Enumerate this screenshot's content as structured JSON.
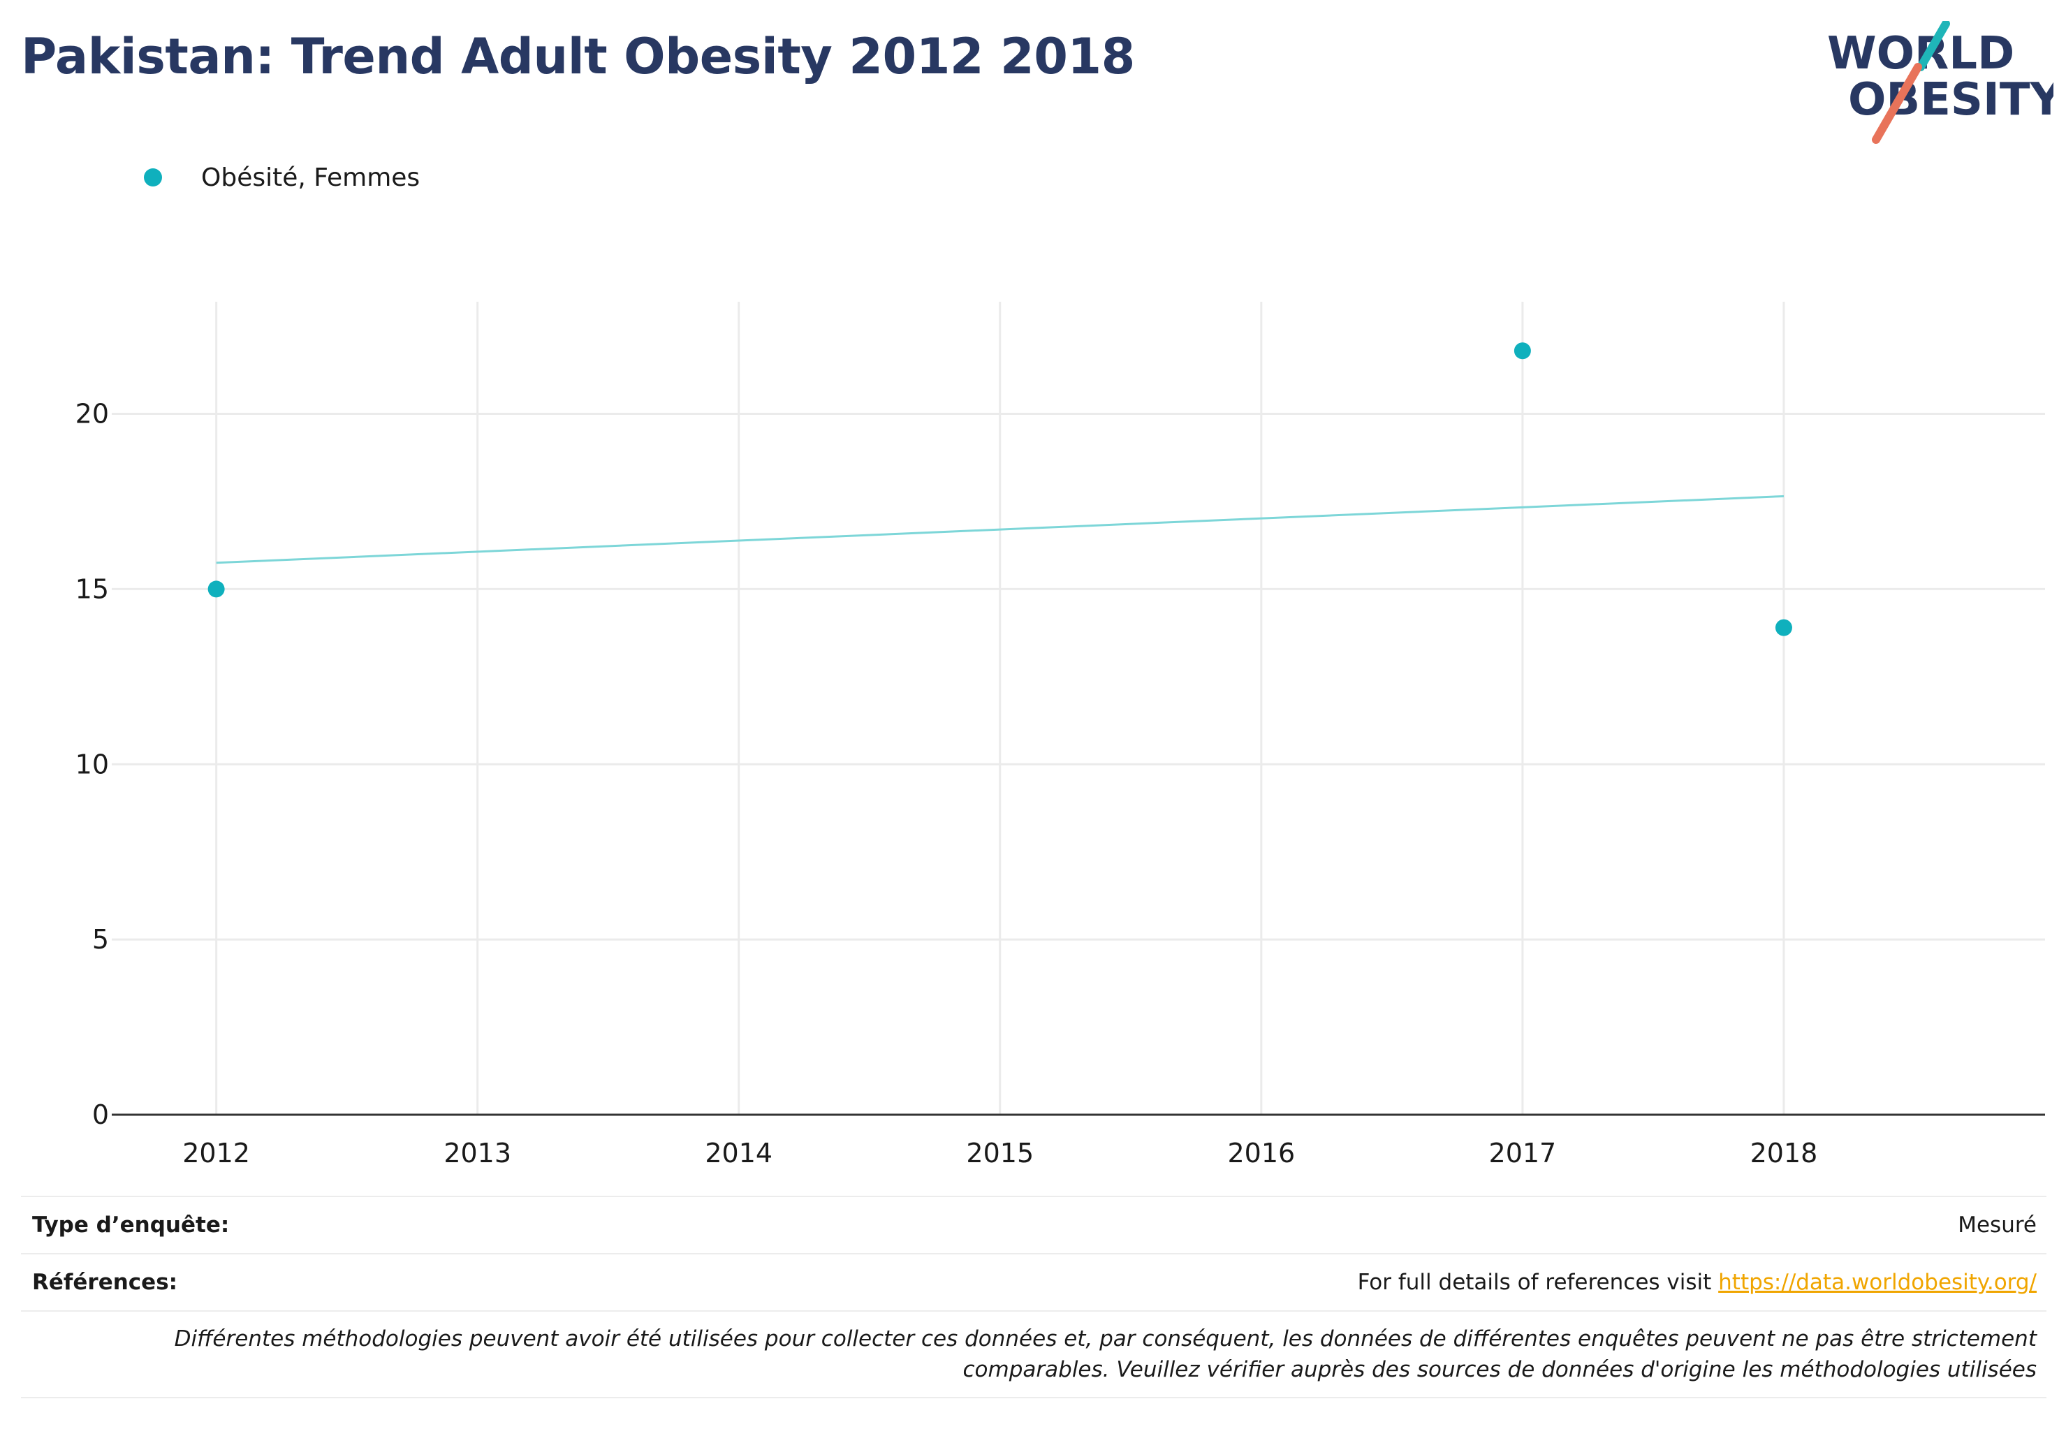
{
  "page": {
    "title": "Pakistan: Trend Adult Obesity 2012 2018"
  },
  "logo": {
    "line1": "WORLD",
    "line2": "OBESITY",
    "accent_teal": "#1fb5b8",
    "accent_coral": "#e8735a",
    "text_color": "#283862"
  },
  "colors": {
    "series": "#0fb0bd",
    "trend": "#7dd6d8",
    "grid": "#ebebeb",
    "axis": "#333333",
    "link": "#f0a500"
  },
  "chart_data": {
    "type": "scatter",
    "title": "Pakistan: Trend Adult Obesity 2012 2018",
    "xlabel": "",
    "ylabel": "",
    "xlim": [
      2011.6,
      2019.0
    ],
    "ylim": [
      0,
      23.2
    ],
    "x_ticks": [
      2012,
      2013,
      2014,
      2015,
      2016,
      2017,
      2018
    ],
    "y_ticks": [
      0,
      5,
      10,
      15,
      20
    ],
    "grid": true,
    "legend_position": "top-left",
    "series": [
      {
        "name": "Obésité, Femmes",
        "x": [
          2012,
          2017,
          2018
        ],
        "y": [
          15.0,
          21.8,
          13.9
        ]
      }
    ],
    "trendline": {
      "x": [
        2012,
        2018
      ],
      "y": [
        15.75,
        17.65
      ]
    }
  },
  "footer": {
    "survey_label": "Type d’enquête:",
    "survey_value": "Mesuré",
    "refs_label": "Références:",
    "refs_text": "For full details of references visit ",
    "refs_link": "https://data.worldobesity.org/",
    "note_line1": "Différentes méthodologies peuvent avoir été utilisées pour collecter ces données et, par conséquent, les données de différentes enquêtes peuvent ne pas être strictement",
    "note_line2": "comparables. Veuillez vérifier auprès des sources de données d'origine les méthodologies utilisées"
  }
}
